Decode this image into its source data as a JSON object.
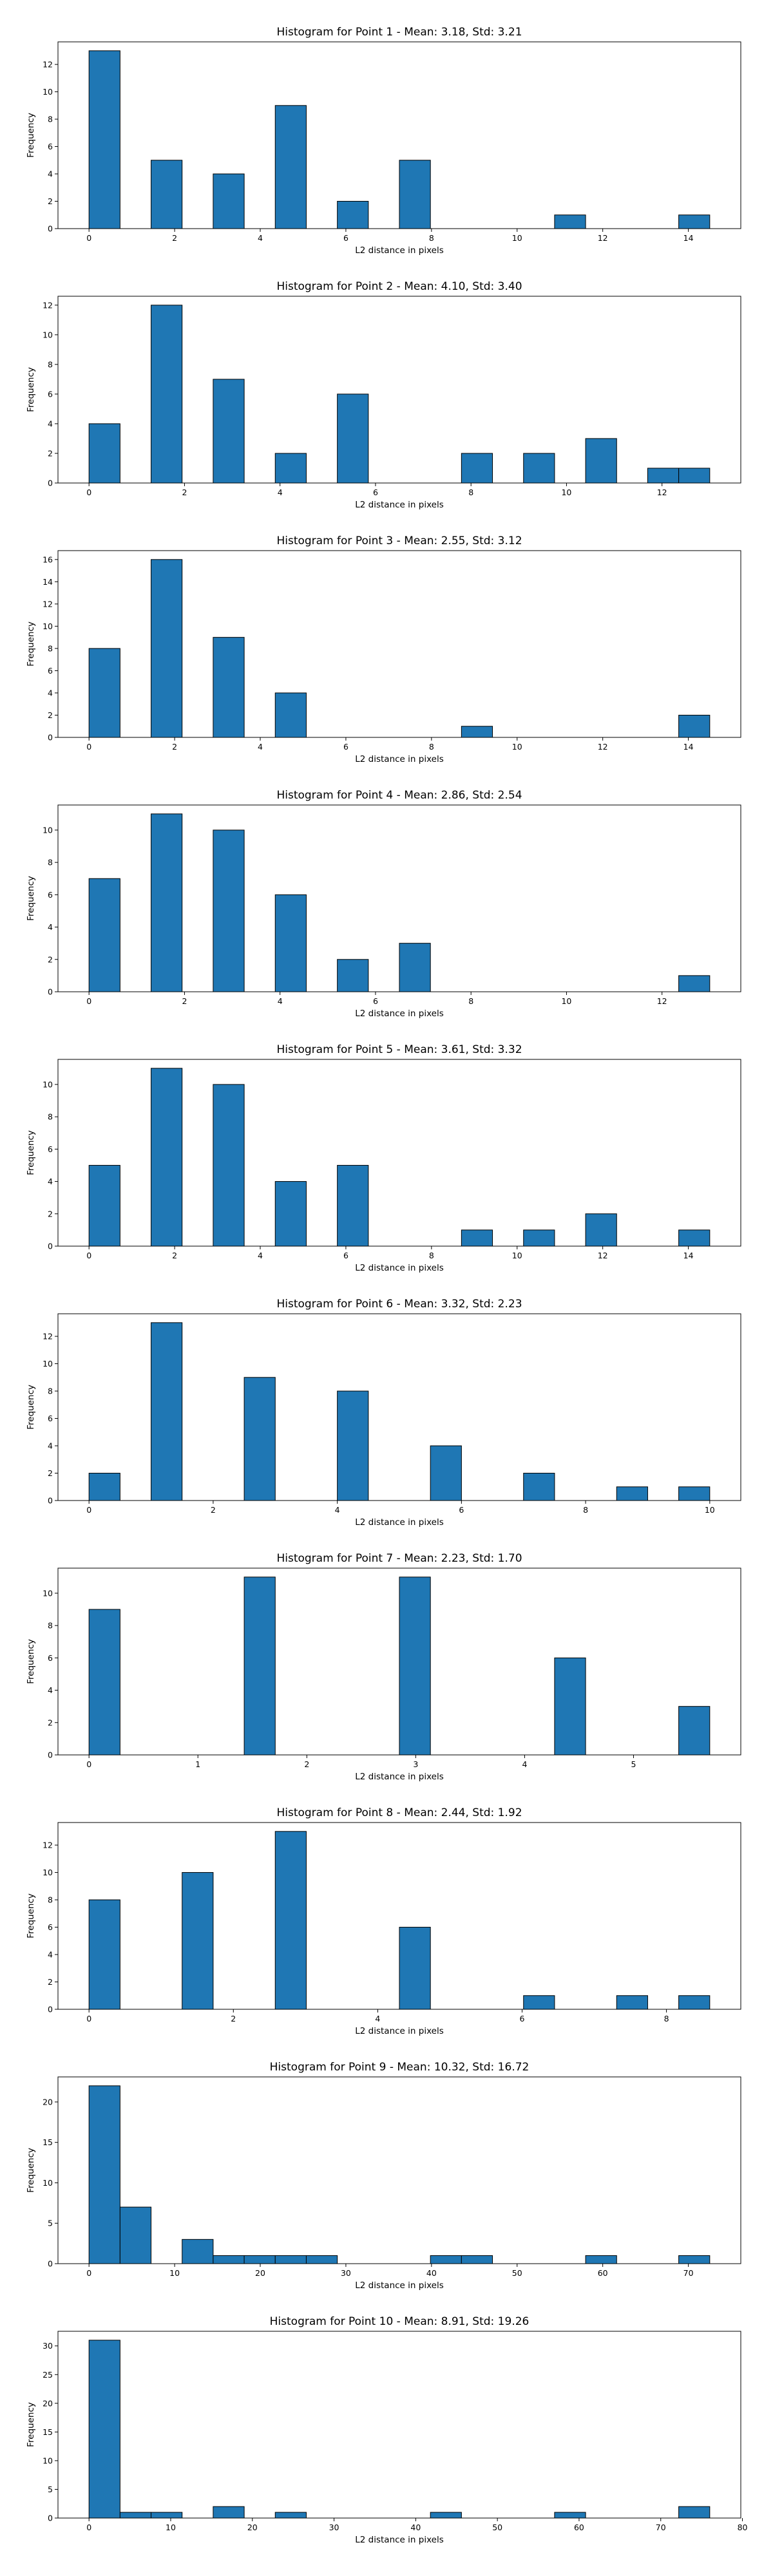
{
  "chart_data": [
    {
      "type": "histogram",
      "title": "Histogram for Point 1 - Mean: 3.18, Std: 3.21",
      "xlabel": "L2 distance in pixels",
      "ylabel": "Frequency",
      "bin_range": [
        0,
        14.5
      ],
      "values": [
        13,
        0,
        5,
        0,
        4,
        0,
        9,
        0,
        2,
        0,
        5,
        0,
        0,
        0,
        0,
        1,
        0,
        0,
        0,
        1
      ],
      "xlim": [
        -0.725,
        15.225
      ],
      "ylim": [
        0,
        13.65
      ],
      "xticks": [
        0,
        2,
        4,
        6,
        8,
        10,
        12,
        14
      ],
      "yticks": [
        0,
        2,
        4,
        6,
        8,
        10,
        12
      ]
    },
    {
      "type": "histogram",
      "title": "Histogram for Point 2 - Mean: 4.10, Std: 3.40",
      "xlabel": "L2 distance in pixels",
      "ylabel": "Frequency",
      "bin_range": [
        0,
        13
      ],
      "values": [
        4,
        0,
        12,
        0,
        7,
        0,
        2,
        0,
        6,
        0,
        0,
        0,
        2,
        0,
        2,
        0,
        3,
        0,
        1,
        1
      ],
      "xlim": [
        -0.65,
        13.65
      ],
      "ylim": [
        0,
        12.6
      ],
      "xticks": [
        0,
        2,
        4,
        6,
        8,
        10,
        12
      ],
      "yticks": [
        0,
        2,
        4,
        6,
        8,
        10,
        12
      ]
    },
    {
      "type": "histogram",
      "title": "Histogram for Point 3 - Mean: 2.55, Std: 3.12",
      "xlabel": "L2 distance in pixels",
      "ylabel": "Frequency",
      "bin_range": [
        0,
        14.5
      ],
      "values": [
        8,
        0,
        16,
        0,
        9,
        0,
        4,
        0,
        0,
        0,
        0,
        0,
        1,
        0,
        0,
        0,
        0,
        0,
        0,
        2
      ],
      "xlim": [
        -0.725,
        15.225
      ],
      "ylim": [
        0,
        16.8
      ],
      "xticks": [
        0,
        2,
        4,
        6,
        8,
        10,
        12,
        14
      ],
      "yticks": [
        0,
        2,
        4,
        6,
        8,
        10,
        12,
        14,
        16
      ]
    },
    {
      "type": "histogram",
      "title": "Histogram for Point 4 - Mean: 2.86, Std: 2.54",
      "xlabel": "L2 distance in pixels",
      "ylabel": "Frequency",
      "bin_range": [
        0,
        13
      ],
      "values": [
        7,
        0,
        11,
        0,
        10,
        0,
        6,
        0,
        2,
        0,
        3,
        0,
        0,
        0,
        0,
        0,
        0,
        0,
        0,
        1
      ],
      "xlim": [
        -0.65,
        13.65
      ],
      "ylim": [
        0,
        11.55
      ],
      "xticks": [
        0,
        2,
        4,
        6,
        8,
        10,
        12
      ],
      "yticks": [
        0,
        2,
        4,
        6,
        8,
        10
      ]
    },
    {
      "type": "histogram",
      "title": "Histogram for Point 5 - Mean: 3.61, Std: 3.32",
      "xlabel": "L2 distance in pixels",
      "ylabel": "Frequency",
      "bin_range": [
        0,
        14.5
      ],
      "values": [
        5,
        0,
        11,
        0,
        10,
        0,
        4,
        0,
        5,
        0,
        0,
        0,
        1,
        0,
        1,
        0,
        2,
        0,
        0,
        1
      ],
      "xlim": [
        -0.725,
        15.225
      ],
      "ylim": [
        0,
        11.55
      ],
      "xticks": [
        0,
        2,
        4,
        6,
        8,
        10,
        12,
        14
      ],
      "yticks": [
        0,
        2,
        4,
        6,
        8,
        10
      ]
    },
    {
      "type": "histogram",
      "title": "Histogram for Point 6 - Mean: 3.32, Std: 2.23",
      "xlabel": "L2 distance in pixels",
      "ylabel": "Frequency",
      "bin_range": [
        0,
        10
      ],
      "values": [
        2,
        0,
        13,
        0,
        0,
        9,
        0,
        0,
        8,
        0,
        0,
        4,
        0,
        0,
        2,
        0,
        0,
        1,
        0,
        1
      ],
      "xlim": [
        -0.5,
        10.5
      ],
      "ylim": [
        0,
        13.65
      ],
      "xticks": [
        0,
        2,
        4,
        6,
        8,
        10
      ],
      "yticks": [
        0,
        2,
        4,
        6,
        8,
        10,
        12
      ]
    },
    {
      "type": "histogram",
      "title": "Histogram for Point 7 - Mean: 2.23, Std: 1.70",
      "xlabel": "L2 distance in pixels",
      "ylabel": "Frequency",
      "bin_range": [
        0,
        5.7
      ],
      "values": [
        9,
        0,
        0,
        0,
        0,
        11,
        0,
        0,
        0,
        0,
        11,
        0,
        0,
        0,
        0,
        6,
        0,
        0,
        0,
        3
      ],
      "xlim": [
        -0.285,
        5.985
      ],
      "ylim": [
        0,
        11.55
      ],
      "xticks": [
        0,
        1,
        2,
        3,
        4,
        5
      ],
      "yticks": [
        0,
        2,
        4,
        6,
        8,
        10
      ]
    },
    {
      "type": "histogram",
      "title": "Histogram for Point 8 - Mean: 2.44, Std: 1.92",
      "xlabel": "L2 distance in pixels",
      "ylabel": "Frequency",
      "bin_range": [
        0,
        8.6
      ],
      "values": [
        8,
        0,
        0,
        10,
        0,
        0,
        13,
        0,
        0,
        0,
        6,
        0,
        0,
        0,
        1,
        0,
        0,
        1,
        0,
        1
      ],
      "xlim": [
        -0.43,
        9.03
      ],
      "ylim": [
        0,
        13.65
      ],
      "xticks": [
        0,
        2,
        4,
        6,
        8
      ],
      "yticks": [
        0,
        2,
        4,
        6,
        8,
        10,
        12
      ]
    },
    {
      "type": "histogram",
      "title": "Histogram for Point 9 - Mean: 10.32, Std: 16.72",
      "xlabel": "L2 distance in pixels",
      "ylabel": "Frequency",
      "bin_range": [
        0,
        72.5
      ],
      "values": [
        22,
        7,
        0,
        3,
        1,
        1,
        1,
        1,
        0,
        0,
        0,
        1,
        1,
        0,
        0,
        0,
        1,
        0,
        0,
        1
      ],
      "xlim": [
        -3.625,
        76.125
      ],
      "ylim": [
        0,
        23.1
      ],
      "xticks": [
        0,
        10,
        20,
        30,
        40,
        50,
        60,
        70
      ],
      "yticks": [
        0,
        5,
        10,
        15,
        20
      ]
    },
    {
      "type": "histogram",
      "title": "Histogram for Point 10 - Mean: 8.91, Std: 19.26",
      "xlabel": "L2 distance in pixels",
      "ylabel": "Frequency",
      "bin_range": [
        0,
        76
      ],
      "values": [
        31,
        1,
        1,
        0,
        2,
        0,
        1,
        0,
        0,
        0,
        0,
        1,
        0,
        0,
        0,
        1,
        0,
        0,
        0,
        2
      ],
      "xlim": [
        -3.8,
        79.8
      ],
      "ylim": [
        0,
        32.55
      ],
      "xticks": [
        0,
        10,
        20,
        30,
        40,
        50,
        60,
        70,
        80
      ],
      "yticks": [
        0,
        5,
        10,
        15,
        20,
        25,
        30
      ]
    }
  ]
}
